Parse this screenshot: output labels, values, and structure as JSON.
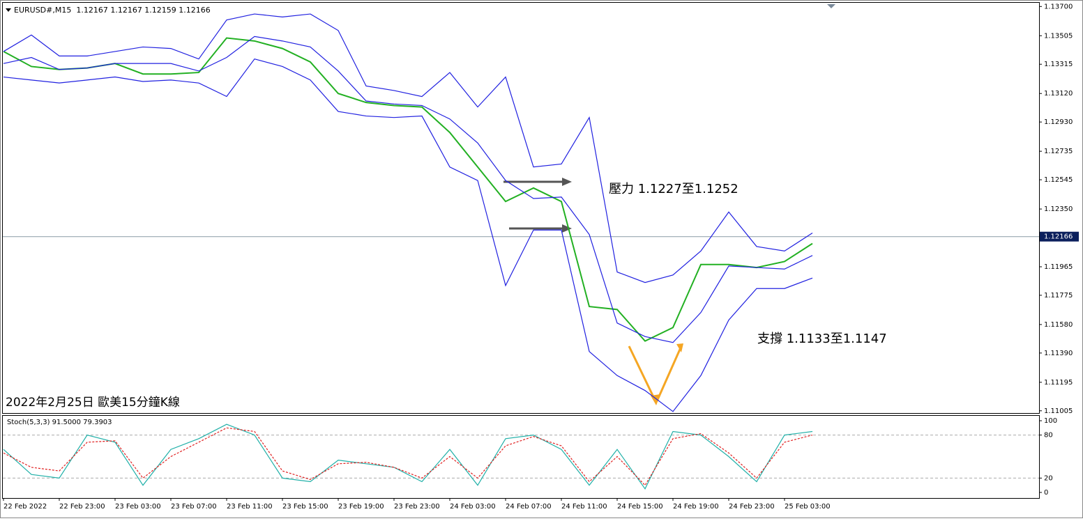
{
  "chart_data": [
    {
      "type": "line",
      "header": "EURUSD#,M15  1.12167 1.12167 1.12159 1.12166",
      "categories": [
        "22 Feb 2022",
        null,
        "22 Feb 23:00",
        null,
        "23 Feb 03:00",
        null,
        "23 Feb 07:00",
        null,
        "23 Feb 11:00",
        null,
        "23 Feb 15:00",
        null,
        "23 Feb 19:00",
        null,
        "23 Feb 23:00",
        null,
        "24 Feb 03:00",
        null,
        "24 Feb 07:00",
        null,
        "24 Feb 11:00",
        null,
        "24 Feb 15:00",
        null,
        "24 Feb 19:00",
        null,
        "24 Feb 23:00",
        null,
        "25 Feb 03:00",
        null
      ],
      "series": [
        {
          "color": "#22b022",
          "values": [
            1.134,
            1.133,
            1.1328,
            1.1329,
            1.1332,
            1.1325,
            1.1325,
            1.1326,
            1.1349,
            1.1347,
            1.1342,
            1.1333,
            1.1312,
            1.1306,
            1.1304,
            1.1303,
            1.1286,
            1.1263,
            1.124,
            1.1249,
            1.124,
            1.117,
            1.1168,
            1.1147,
            1.1156,
            1.1198,
            1.1198,
            1.1196,
            1.12,
            1.1212
          ]
        },
        {
          "color": "#2020e0",
          "values": [
            1.134,
            1.1351,
            1.1337,
            1.1337,
            1.134,
            1.1343,
            1.1342,
            1.1335,
            1.1361,
            1.1365,
            1.1363,
            1.1365,
            1.1354,
            1.1317,
            1.1314,
            1.131,
            1.1326,
            1.1303,
            1.1323,
            1.1263,
            1.1265,
            1.1296,
            1.1193,
            1.1186,
            1.1191,
            1.1207,
            1.1233,
            1.121,
            1.1207,
            1.1219
          ]
        },
        {
          "color": "#2020e0",
          "values": [
            1.1332,
            1.1336,
            1.1328,
            1.1329,
            1.1332,
            1.1332,
            1.1332,
            1.1327,
            1.1336,
            1.135,
            1.1347,
            1.1343,
            1.1327,
            1.1307,
            1.1305,
            1.1304,
            1.1295,
            1.1279,
            1.1254,
            1.1242,
            1.1243,
            1.1218,
            1.1159,
            1.115,
            1.1146,
            1.1166,
            1.1197,
            1.1196,
            1.1195,
            1.1204
          ]
        },
        {
          "color": "#2020e0",
          "values": [
            1.1323,
            1.1321,
            1.1319,
            1.1321,
            1.1323,
            1.132,
            1.1321,
            1.1319,
            1.131,
            1.1335,
            1.133,
            1.1321,
            1.13,
            1.1297,
            1.1296,
            1.1297,
            1.1263,
            1.1254,
            1.1184,
            1.1221,
            1.1221,
            1.114,
            1.1124,
            1.1114,
            1.11,
            1.1124,
            1.1161,
            1.1182,
            1.1182,
            1.1189
          ]
        }
      ],
      "ylim": [
        1.1099,
        1.1372
      ],
      "yticks": [
        {
          "value": 1.137,
          "label": "1.13700"
        },
        1.13505,
        1.13315,
        {
          "value": 1.1312,
          "label": "1.13120"
        },
        {
          "value": 1.1293,
          "label": "1.12930"
        },
        1.12735,
        1.12545,
        {
          "value": 1.1235,
          "label": "1.12350"
        },
        1.11965,
        1.11775,
        {
          "value": 1.1158,
          "label": "1.11580"
        },
        {
          "value": 1.1139,
          "label": "1.11390"
        },
        1.11195,
        1.11005
      ],
      "last_price": 1.12166,
      "annotations": [
        "壓力 1.1227至1.1252",
        "支撐 1.1133至1.1147",
        "2022年2月25日 歐美15分鐘K線"
      ]
    },
    {
      "type": "line",
      "header": "Stoch(5,3,3) 91.5000 79.3903",
      "series": [
        {
          "color": "#20b0a8",
          "values": [
            60,
            25,
            20,
            80,
            70,
            10,
            60,
            75,
            95,
            80,
            20,
            15,
            45,
            40,
            35,
            15,
            60,
            10,
            75,
            80,
            60,
            10,
            60,
            5,
            85,
            80,
            50,
            15,
            80,
            85
          ]
        },
        {
          "color": "#e02020",
          "dashed": true,
          "values": [
            55,
            35,
            30,
            70,
            72,
            20,
            50,
            70,
            90,
            85,
            30,
            18,
            40,
            42,
            35,
            20,
            50,
            20,
            65,
            78,
            65,
            15,
            50,
            10,
            75,
            82,
            55,
            20,
            70,
            80
          ]
        }
      ],
      "ylim": [
        -7.8,
        107.8
      ],
      "yticks": [
        100,
        80,
        20,
        0
      ]
    }
  ]
}
